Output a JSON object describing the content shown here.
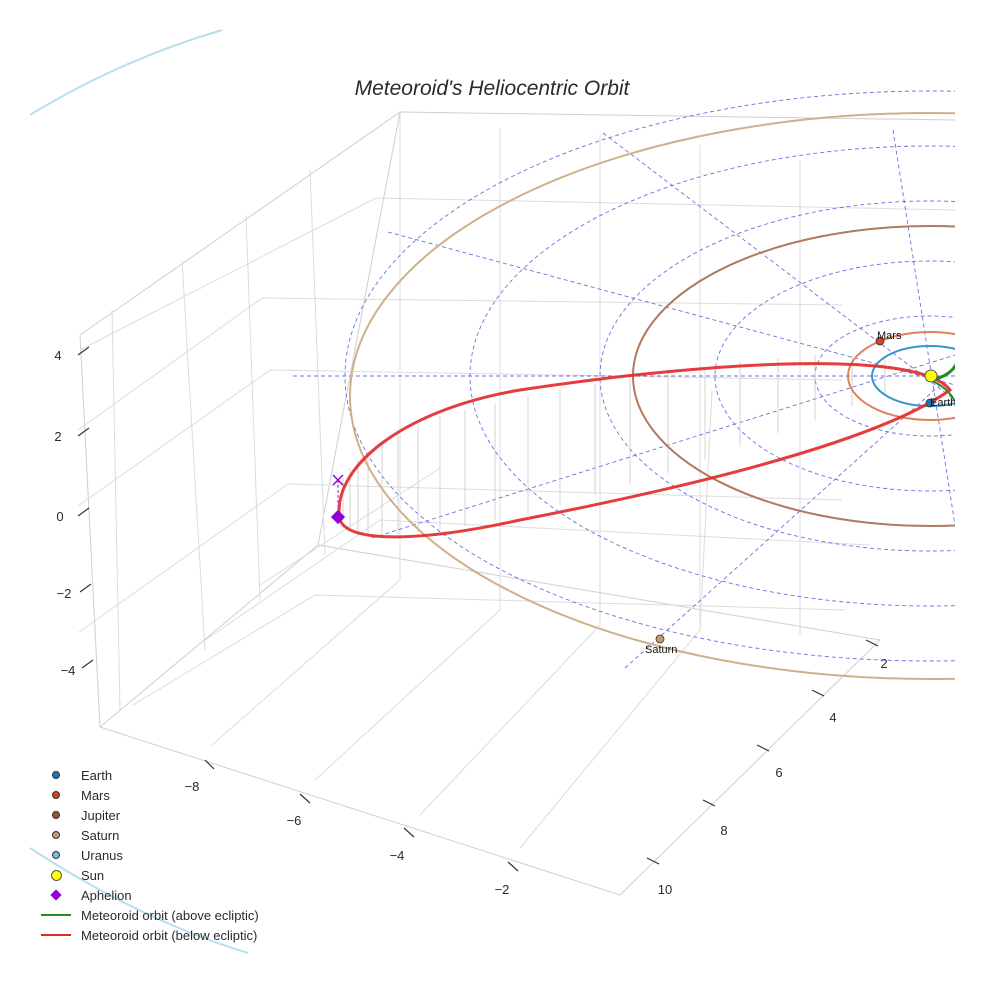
{
  "chart_data": {
    "type": "scatter3d",
    "title": "Meteoroid's Heliocentric Orbit",
    "x_ticks": [
      "−8",
      "−6",
      "−4",
      "−2"
    ],
    "y_ticks": [
      "2",
      "4",
      "6",
      "8",
      "10"
    ],
    "z_ticks": [
      "4",
      "2",
      "0",
      "−2",
      "−4"
    ],
    "x_range": [
      -10,
      0
    ],
    "y_range": [
      0,
      11
    ],
    "z_range": [
      -5,
      5
    ],
    "bodies": [
      {
        "name": "Earth",
        "color": "#1f77b4",
        "orbit_radius_au": 1.0,
        "orbit_color": "#3a96c8"
      },
      {
        "name": "Mars",
        "color": "#d0451b",
        "orbit_radius_au": 1.52,
        "orbit_color": "#e0805a"
      },
      {
        "name": "Jupiter",
        "color": "#a0522d",
        "orbit_radius_au": 5.2,
        "orbit_color": "#b07a5f"
      },
      {
        "name": "Saturn",
        "color": "#c49a6c",
        "orbit_radius_au": 9.5,
        "orbit_color": "#cfb08a"
      },
      {
        "name": "Uranus",
        "color": "#6fc3df",
        "orbit_radius_au": 19.2,
        "orbit_color": "#b6e0ec"
      }
    ],
    "sun": {
      "name": "Sun",
      "color": "#ffff00"
    },
    "aphelion": {
      "name": "Aphelion",
      "color": "#9400d3",
      "x": -9.2,
      "y": 2.8,
      "z": 0.0
    },
    "meteoroid_orbit": [
      {
        "name": "Meteoroid orbit (above ecliptic)",
        "color": "#228b22",
        "portion": "above"
      },
      {
        "name": "Meteoroid orbit (below ecliptic)",
        "color": "#e32727",
        "portion": "below"
      }
    ],
    "point_labels": [
      "Mars",
      "Earth",
      "Saturn"
    ],
    "legend": [
      "Earth",
      "Mars",
      "Jupiter",
      "Saturn",
      "Uranus",
      "Sun",
      "Aphelion",
      "Meteoroid orbit (above ecliptic)",
      "Meteoroid orbit (below ecliptic)"
    ]
  }
}
